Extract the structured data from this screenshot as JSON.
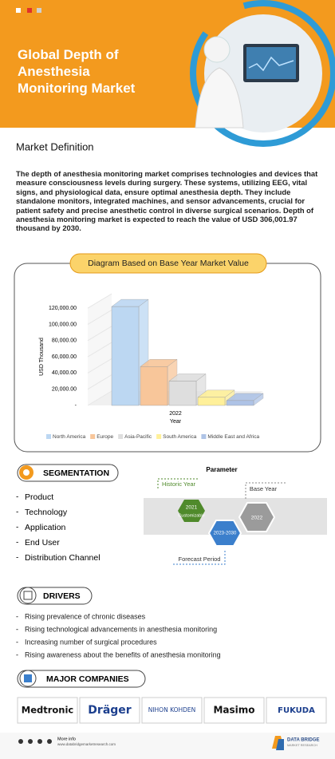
{
  "header": {
    "title": "Global Depth of Anesthesia Monitoring Market"
  },
  "definition": {
    "heading": "Market Definition",
    "text": "The depth of anesthesia monitoring market comprises technologies and devices that measure consciousness levels during surgery. These systems, utilizing EEG, vital signs, and physiological data, ensure optimal anesthesia depth. They include standalone monitors, integrated machines, and sensor advancements, crucial for patient safety and precise anesthetic control in diverse surgical scenarios. Depth of anesthesia monitoring market is expected to reach the value of USD  306,001.97 thousand by 2030."
  },
  "chart_data": {
    "type": "bar",
    "title": "Diagram Based on Base Year Market Value",
    "categories": [
      "2022"
    ],
    "x_label": "Year",
    "y_label": "USD Thousand",
    "series": [
      {
        "name": "North America",
        "color": "#bcd7f2",
        "values": [
          122000
        ]
      },
      {
        "name": "Europe",
        "color": "#f8c69a",
        "values": [
          48000
        ]
      },
      {
        "name": "Asia-Pacific",
        "color": "#dedede",
        "values": [
          30000
        ]
      },
      {
        "name": "South America",
        "color": "#fff09a",
        "values": [
          10000
        ]
      },
      {
        "name": "Middle East and Africa",
        "color": "#aec3e6",
        "values": [
          6000
        ]
      }
    ],
    "ylim": [
      0,
      130000
    ],
    "yticks": [
      {
        "value": 0,
        "label": "-"
      },
      {
        "value": 20000,
        "label": "20,000.00"
      },
      {
        "value": 40000,
        "label": "40,000.00"
      },
      {
        "value": 60000,
        "label": "60,000.00"
      },
      {
        "value": 80000,
        "label": "80,000.00"
      },
      {
        "value": 100000,
        "label": "100,000.00"
      },
      {
        "value": 120000,
        "label": "120,000.00"
      }
    ],
    "legend": "bottom"
  },
  "segmentation": {
    "heading": "SEGMENTATION",
    "items": [
      "Product",
      "Technology",
      "Application",
      "End User",
      "Distribution Channel"
    ]
  },
  "parameter": {
    "title": "Parameter",
    "historic_label": "Historic Year",
    "historic_year": "2021",
    "historic_note": "Customizable",
    "forecast_years": "2023-2030",
    "base_year": "2022",
    "base_label": "Base Year",
    "forecast_label": "Forecast Period"
  },
  "drivers": {
    "heading": "DRIVERS",
    "items": [
      "Rising prevalence of chronic diseases",
      "Rising technological advancements in anesthesia monitoring",
      "Increasing number of surgical procedures",
      "Rising awareness about the benefits of anesthesia monitoring"
    ]
  },
  "companies": {
    "heading": "MAJOR COMPANIES",
    "items": [
      "Medtronic",
      "Dräger",
      "NIHON KOHDEN",
      "Masimo",
      "FUKUDA"
    ]
  },
  "footer": {
    "more_info": "More info",
    "url": "www.databridgemarketresearch.com",
    "brand": "DATA BRIDGE",
    "brand_sub": "MARKET RESEARCH"
  }
}
